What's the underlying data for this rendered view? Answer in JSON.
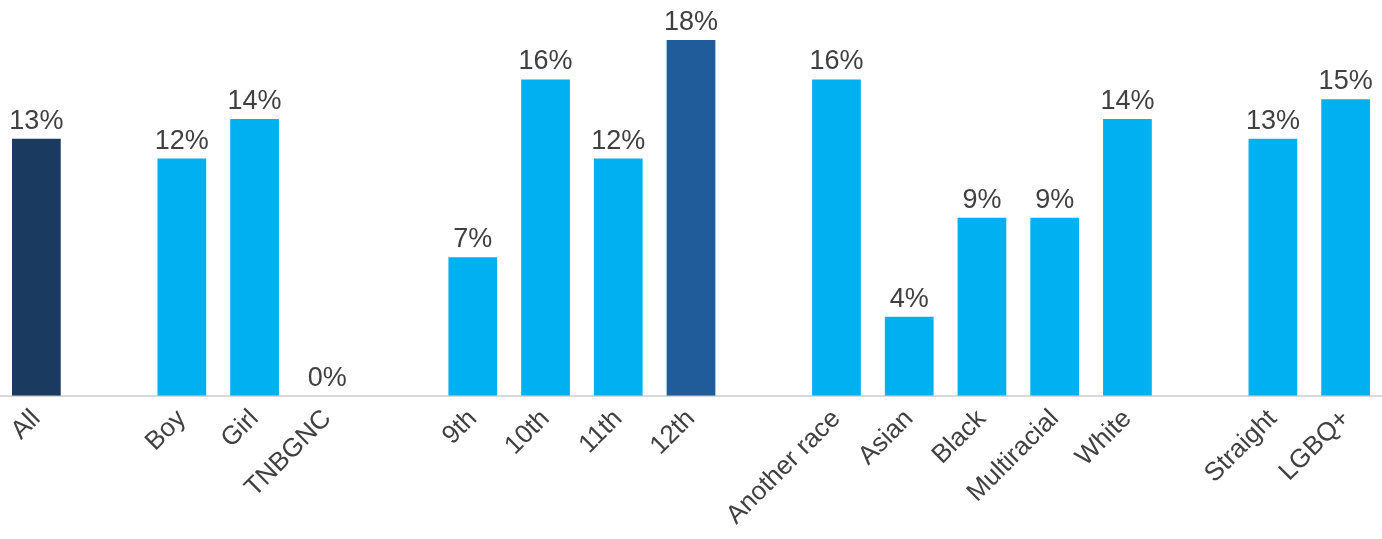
{
  "chart_data": {
    "type": "bar",
    "categories": [
      "All",
      null,
      "Boy",
      "Girl",
      "TNBGNC",
      null,
      "9th",
      "10th",
      "11th",
      "12th",
      null,
      "Another race",
      "Asian",
      "Black",
      "Multiracial",
      "White",
      null,
      "Straight",
      "LGBQ+"
    ],
    "values": [
      13,
      null,
      12,
      14,
      0,
      null,
      7,
      16,
      12,
      18,
      null,
      16,
      4,
      9,
      9,
      14,
      null,
      13,
      15
    ],
    "colors": [
      "#1b3a5f",
      null,
      "#00b0f0",
      "#00b0f0",
      "#00b0f0",
      null,
      "#00b0f0",
      "#00b0f0",
      "#00b0f0",
      "#1f5c99",
      null,
      "#00b0f0",
      "#00b0f0",
      "#00b0f0",
      "#00b0f0",
      "#00b0f0",
      null,
      "#00b0f0",
      "#00b0f0"
    ],
    "value_labels": [
      "13%",
      null,
      "12%",
      "14%",
      "0%",
      null,
      "7%",
      "16%",
      "12%",
      "18%",
      null,
      "16%",
      "4%",
      "9%",
      "9%",
      "14%",
      null,
      "13%",
      "15%"
    ],
    "grid": false,
    "legend": false
  }
}
